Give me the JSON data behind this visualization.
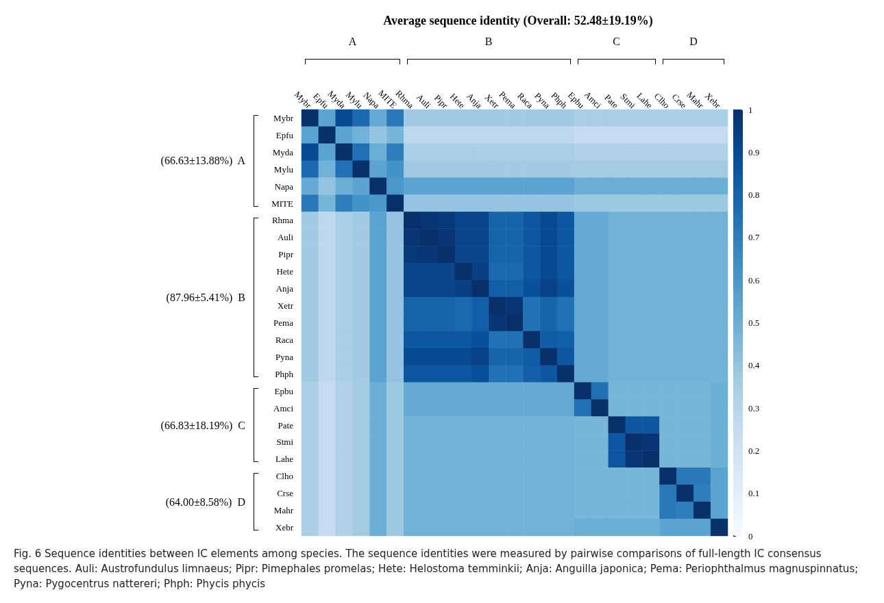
{
  "chart_data": {
    "type": "heatmap",
    "title": "Average sequence identity (Overall: 52.48±19.19%)",
    "categories": [
      "Mybr",
      "Epfu",
      "Myda",
      "Mylu",
      "Napa",
      "MITE",
      "Rhma",
      "Auli",
      "Pipr",
      "Hete",
      "Anja",
      "Xetr",
      "Pema",
      "Raca",
      "Pyna",
      "Phph",
      "Epbu",
      "Amci",
      "Pate",
      "Stmi",
      "Lahe",
      "Clho",
      "Crse",
      "Mahr",
      "Xebr"
    ],
    "y_categories": [
      "Mybr",
      "Epfu",
      "Myda",
      "Mylu",
      "Napa",
      "MITE",
      "Rhma",
      "Auli",
      "Pipr",
      "Hete",
      "Anja",
      "Xetr",
      "Pema",
      "Raca",
      "Pyna",
      "Phph",
      "Epbu",
      "Amci",
      "Pate",
      "Stmi",
      "Lahe",
      "Clho",
      "Crse",
      "Mahr",
      "Xebr"
    ],
    "cells": [
      [
        1,
        0.55,
        0.9,
        0.78,
        0.52,
        0.72,
        0.37,
        0.37,
        0.37,
        0.37,
        0.37,
        0.37,
        0.37,
        0.37,
        0.37,
        0.37,
        0.34,
        0.34,
        0.34,
        0.34,
        0.34,
        0.34,
        0.34,
        0.34,
        0.34
      ],
      [
        0.55,
        1,
        0.55,
        0.48,
        0.4,
        0.47,
        0.27,
        0.27,
        0.27,
        0.27,
        0.27,
        0.27,
        0.27,
        0.27,
        0.27,
        0.27,
        0.25,
        0.25,
        0.25,
        0.25,
        0.25,
        0.25,
        0.25,
        0.25,
        0.25
      ],
      [
        0.9,
        0.55,
        1,
        0.75,
        0.5,
        0.7,
        0.34,
        0.34,
        0.34,
        0.34,
        0.34,
        0.34,
        0.34,
        0.34,
        0.34,
        0.34,
        0.32,
        0.32,
        0.32,
        0.32,
        0.32,
        0.32,
        0.32,
        0.32,
        0.32
      ],
      [
        0.78,
        0.48,
        0.75,
        1,
        0.55,
        0.62,
        0.37,
        0.37,
        0.37,
        0.37,
        0.37,
        0.37,
        0.37,
        0.37,
        0.37,
        0.37,
        0.36,
        0.36,
        0.36,
        0.36,
        0.36,
        0.36,
        0.36,
        0.36,
        0.36
      ],
      [
        0.52,
        0.4,
        0.5,
        0.55,
        1,
        0.6,
        0.55,
        0.55,
        0.55,
        0.55,
        0.55,
        0.55,
        0.55,
        0.55,
        0.55,
        0.55,
        0.5,
        0.5,
        0.5,
        0.5,
        0.5,
        0.5,
        0.5,
        0.5,
        0.5
      ],
      [
        0.72,
        0.47,
        0.7,
        0.62,
        0.6,
        1,
        0.4,
        0.4,
        0.4,
        0.4,
        0.4,
        0.4,
        0.4,
        0.4,
        0.4,
        0.4,
        0.38,
        0.38,
        0.38,
        0.38,
        0.38,
        0.38,
        0.38,
        0.38,
        0.38
      ],
      [
        0.37,
        0.27,
        0.34,
        0.37,
        0.55,
        0.4,
        1,
        0.98,
        0.97,
        0.92,
        0.92,
        0.8,
        0.8,
        0.85,
        0.9,
        0.85,
        0.52,
        0.52,
        0.48,
        0.48,
        0.48,
        0.48,
        0.48,
        0.48,
        0.48
      ],
      [
        0.37,
        0.27,
        0.34,
        0.37,
        0.55,
        0.4,
        0.98,
        1,
        0.98,
        0.92,
        0.92,
        0.8,
        0.8,
        0.85,
        0.9,
        0.85,
        0.52,
        0.52,
        0.48,
        0.48,
        0.48,
        0.48,
        0.48,
        0.48,
        0.48
      ],
      [
        0.37,
        0.27,
        0.34,
        0.37,
        0.55,
        0.4,
        0.97,
        0.98,
        1,
        0.92,
        0.92,
        0.8,
        0.8,
        0.85,
        0.9,
        0.85,
        0.52,
        0.52,
        0.48,
        0.48,
        0.48,
        0.48,
        0.48,
        0.48,
        0.48
      ],
      [
        0.37,
        0.27,
        0.34,
        0.37,
        0.55,
        0.4,
        0.92,
        0.92,
        0.92,
        1,
        0.94,
        0.78,
        0.78,
        0.85,
        0.9,
        0.85,
        0.52,
        0.52,
        0.48,
        0.48,
        0.48,
        0.48,
        0.48,
        0.48,
        0.48
      ],
      [
        0.37,
        0.27,
        0.34,
        0.37,
        0.55,
        0.4,
        0.92,
        0.92,
        0.92,
        0.94,
        1,
        0.82,
        0.82,
        0.88,
        0.93,
        0.88,
        0.52,
        0.52,
        0.48,
        0.48,
        0.48,
        0.48,
        0.48,
        0.48,
        0.48
      ],
      [
        0.37,
        0.27,
        0.34,
        0.37,
        0.55,
        0.4,
        0.8,
        0.8,
        0.8,
        0.78,
        0.82,
        1,
        0.98,
        0.75,
        0.8,
        0.75,
        0.52,
        0.52,
        0.48,
        0.48,
        0.48,
        0.48,
        0.48,
        0.48,
        0.48
      ],
      [
        0.37,
        0.27,
        0.34,
        0.37,
        0.55,
        0.4,
        0.8,
        0.8,
        0.8,
        0.78,
        0.82,
        0.98,
        1,
        0.75,
        0.8,
        0.75,
        0.52,
        0.52,
        0.48,
        0.48,
        0.48,
        0.48,
        0.48,
        0.48,
        0.48
      ],
      [
        0.37,
        0.27,
        0.34,
        0.37,
        0.55,
        0.4,
        0.85,
        0.85,
        0.85,
        0.85,
        0.88,
        0.75,
        0.75,
        1,
        0.83,
        0.82,
        0.52,
        0.52,
        0.48,
        0.48,
        0.48,
        0.48,
        0.48,
        0.48,
        0.48
      ],
      [
        0.37,
        0.27,
        0.34,
        0.37,
        0.55,
        0.4,
        0.9,
        0.9,
        0.9,
        0.9,
        0.93,
        0.8,
        0.8,
        0.83,
        1,
        0.85,
        0.52,
        0.52,
        0.48,
        0.48,
        0.48,
        0.48,
        0.48,
        0.48,
        0.48
      ],
      [
        0.37,
        0.27,
        0.34,
        0.37,
        0.55,
        0.4,
        0.85,
        0.85,
        0.85,
        0.85,
        0.88,
        0.75,
        0.75,
        0.82,
        0.85,
        1,
        0.52,
        0.52,
        0.48,
        0.48,
        0.48,
        0.48,
        0.48,
        0.48,
        0.48
      ],
      [
        0.34,
        0.25,
        0.32,
        0.36,
        0.5,
        0.38,
        0.52,
        0.52,
        0.52,
        0.52,
        0.52,
        0.52,
        0.52,
        0.52,
        0.52,
        0.52,
        1,
        0.75,
        0.47,
        0.47,
        0.47,
        0.47,
        0.47,
        0.47,
        0.5
      ],
      [
        0.34,
        0.25,
        0.32,
        0.36,
        0.5,
        0.38,
        0.52,
        0.52,
        0.52,
        0.52,
        0.52,
        0.52,
        0.52,
        0.52,
        0.52,
        0.52,
        0.75,
        1,
        0.47,
        0.47,
        0.47,
        0.47,
        0.47,
        0.47,
        0.5
      ],
      [
        0.34,
        0.25,
        0.32,
        0.36,
        0.5,
        0.38,
        0.48,
        0.48,
        0.48,
        0.48,
        0.48,
        0.48,
        0.48,
        0.48,
        0.48,
        0.48,
        0.47,
        0.47,
        1,
        0.85,
        0.85,
        0.47,
        0.47,
        0.47,
        0.5
      ],
      [
        0.34,
        0.25,
        0.32,
        0.36,
        0.5,
        0.38,
        0.48,
        0.48,
        0.48,
        0.48,
        0.48,
        0.48,
        0.48,
        0.48,
        0.48,
        0.48,
        0.47,
        0.47,
        0.85,
        1,
        0.98,
        0.47,
        0.47,
        0.47,
        0.5
      ],
      [
        0.34,
        0.25,
        0.32,
        0.36,
        0.5,
        0.38,
        0.48,
        0.48,
        0.48,
        0.48,
        0.48,
        0.48,
        0.48,
        0.48,
        0.48,
        0.48,
        0.47,
        0.47,
        0.85,
        0.98,
        1,
        0.47,
        0.47,
        0.47,
        0.5
      ],
      [
        0.34,
        0.25,
        0.32,
        0.36,
        0.5,
        0.38,
        0.48,
        0.48,
        0.48,
        0.48,
        0.48,
        0.48,
        0.48,
        0.48,
        0.48,
        0.48,
        0.47,
        0.47,
        0.47,
        0.47,
        0.47,
        1,
        0.72,
        0.72,
        0.55
      ],
      [
        0.34,
        0.25,
        0.32,
        0.36,
        0.5,
        0.38,
        0.48,
        0.48,
        0.48,
        0.48,
        0.48,
        0.48,
        0.48,
        0.48,
        0.48,
        0.48,
        0.47,
        0.47,
        0.47,
        0.47,
        0.47,
        0.72,
        1,
        0.7,
        0.55
      ],
      [
        0.34,
        0.25,
        0.32,
        0.36,
        0.5,
        0.38,
        0.48,
        0.48,
        0.48,
        0.48,
        0.48,
        0.48,
        0.48,
        0.48,
        0.48,
        0.48,
        0.47,
        0.47,
        0.47,
        0.47,
        0.47,
        0.72,
        0.7,
        1,
        0.55
      ],
      [
        0.34,
        0.25,
        0.32,
        0.36,
        0.5,
        0.38,
        0.48,
        0.48,
        0.48,
        0.48,
        0.48,
        0.48,
        0.48,
        0.48,
        0.48,
        0.48,
        0.5,
        0.5,
        0.5,
        0.5,
        0.5,
        0.55,
        0.55,
        0.55,
        1
      ]
    ],
    "clim": [
      0,
      1
    ],
    "cticks": [
      0,
      0.1,
      0.2,
      0.3,
      0.4,
      0.5,
      0.6,
      0.7,
      0.8,
      0.9,
      1
    ],
    "annotations": [
      "A",
      "B",
      "C",
      "D",
      "(66.63±13.88%)  A",
      "(87.96±5.41%)  B",
      "(66.83±18.19%)  C",
      "(64.00±8.58%)  D",
      "Fig. 6 Sequence identities between IC elements among species. The sequence identities were measured by pairwise comparisons of full-length IC consensus sequences. Auli: Austrofundulus limnaeus; Pipr: Pimephales promelas; Hete: Helostoma temminkii; Anja: Anguilla japonica; Pema: Periophthalmus magnuspinnatus; Pyna: Pygocentrus nattereri; Phph: Phycis phycis"
    ]
  }
}
